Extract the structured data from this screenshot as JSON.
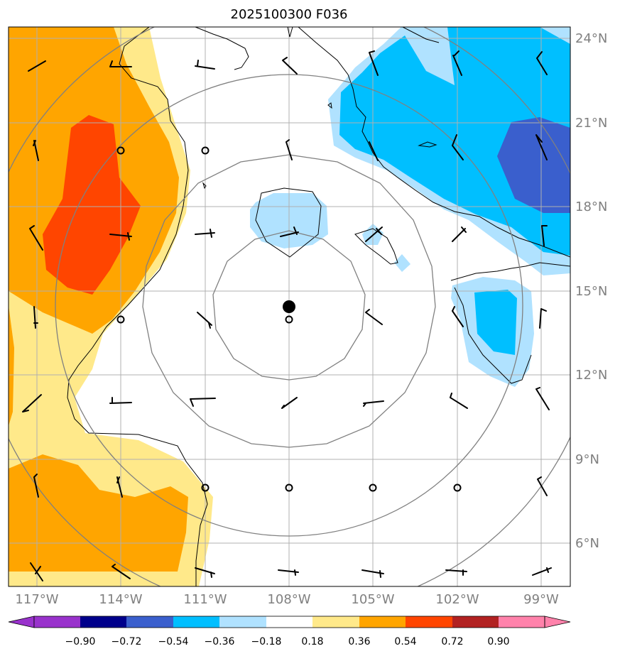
{
  "title": "2025100300 F036",
  "colors": {
    "background": "#ffffff",
    "grid": "#b0b0b0",
    "range_ring": "#808080",
    "coast": "#000000",
    "label": "#808080"
  },
  "map": {
    "lon_range": [
      -118,
      -98
    ],
    "lat_range": [
      4.5,
      24.5
    ],
    "lat_labels": [
      "24°N",
      "21°N",
      "18°N",
      "15°N",
      "12°N",
      "9°N",
      "6°N"
    ],
    "lon_labels": [
      "117°W",
      "114°W",
      "111°W",
      "108°W",
      "105°W",
      "102°W",
      "99°W"
    ],
    "storm_center": {
      "lon": -108,
      "lat": 14.4
    },
    "range_rings_deg": [
      2.75,
      5.5,
      8.3,
      11.1
    ],
    "wind_barbs": "black flag/barb symbols on a 3-degree grid; circles indicate calm",
    "colorbar": {
      "levels": [
        "−0.90",
        "−0.72",
        "−0.54",
        "−0.36",
        "−0.18",
        "0.18",
        "0.36",
        "0.54",
        "0.72",
        "0.90"
      ],
      "colors": [
        "#9932cc",
        "#00008b",
        "#3a5fcd",
        "#00bfff",
        "#b0e2ff",
        "#ffffff",
        "#ffe98a",
        "#ffa500",
        "#ff4500",
        "#b22222",
        "#ff82ab"
      ]
    }
  }
}
